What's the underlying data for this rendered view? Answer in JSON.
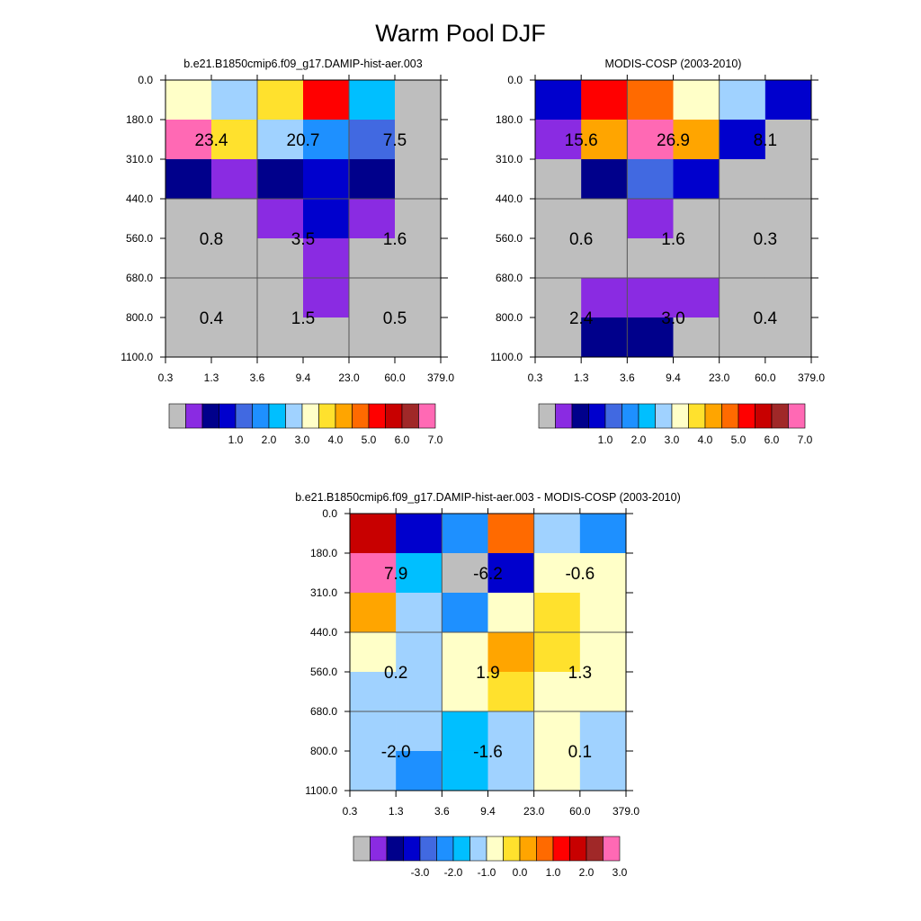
{
  "figure": {
    "title": "Warm Pool DJF"
  },
  "chart_data": [
    {
      "type": "heatmap",
      "title": "b.e21.B1850cmip6.f09_g17.DAMIP-hist-aer.003",
      "x_ticks": [
        "0.3",
        "1.3",
        "3.6",
        "9.4",
        "23.0",
        "60.0",
        "379.0"
      ],
      "y_ticks": [
        "0.0",
        "180.0",
        "310.0",
        "440.0",
        "560.0",
        "680.0",
        "800.0",
        "1100.0"
      ],
      "colorbar": {
        "colors": [
          "#bebebe",
          "#8a2be2",
          "#00008b",
          "#0000cd",
          "#4169e1",
          "#1e90ff",
          "#00bfff",
          "#a0d2ff",
          "#ffffc8",
          "#ffe12d",
          "#ffa500",
          "#ff6a00",
          "#ff0000",
          "#c80000",
          "#a02828",
          "#ff69b4"
        ],
        "tick_labels": [
          "1.0",
          "2.0",
          "3.0",
          "4.0",
          "5.0",
          "6.0",
          "7.0"
        ]
      },
      "grid": [
        [
          "#ffffc8",
          "#a0d2ff",
          "#ffe12d",
          "#ff0000",
          "#00bfff",
          "#bebebe"
        ],
        [
          "#ff69b4",
          "#ffe12d",
          "#a0d2ff",
          "#1e90ff",
          "#4169e1",
          "#bebebe"
        ],
        [
          "#00008b",
          "#8a2be2",
          "#00008b",
          "#0000cd",
          "#00008b",
          "#bebebe"
        ],
        [
          "#bebebe",
          "#bebebe",
          "#8a2be2",
          "#0000cd",
          "#8a2be2",
          "#bebebe"
        ],
        [
          "#bebebe",
          "#bebebe",
          "#bebebe",
          "#8a2be2",
          "#bebebe",
          "#bebebe"
        ],
        [
          "#bebebe",
          "#bebebe",
          "#bebebe",
          "#8a2be2",
          "#bebebe",
          "#bebebe"
        ],
        [
          "#bebebe",
          "#bebebe",
          "#bebebe",
          "#bebebe",
          "#bebebe",
          "#bebebe"
        ]
      ],
      "block_labels": [
        [
          "23.4",
          "20.7",
          "7.5"
        ],
        [
          "0.8",
          "3.5",
          "1.6"
        ],
        [
          "0.4",
          "1.5",
          "0.5"
        ]
      ]
    },
    {
      "type": "heatmap",
      "title": "MODIS-COSP (2003-2010)",
      "x_ticks": [
        "0.3",
        "1.3",
        "3.6",
        "9.4",
        "23.0",
        "60.0",
        "379.0"
      ],
      "y_ticks": [
        "0.0",
        "180.0",
        "310.0",
        "440.0",
        "560.0",
        "680.0",
        "800.0",
        "1100.0"
      ],
      "colorbar": {
        "colors": [
          "#bebebe",
          "#8a2be2",
          "#00008b",
          "#0000cd",
          "#4169e1",
          "#1e90ff",
          "#00bfff",
          "#a0d2ff",
          "#ffffc8",
          "#ffe12d",
          "#ffa500",
          "#ff6a00",
          "#ff0000",
          "#c80000",
          "#a02828",
          "#ff69b4"
        ],
        "tick_labels": [
          "1.0",
          "2.0",
          "3.0",
          "4.0",
          "5.0",
          "6.0",
          "7.0"
        ]
      },
      "grid": [
        [
          "#0000cd",
          "#ff0000",
          "#ff6a00",
          "#ffffc8",
          "#a0d2ff",
          "#0000cd"
        ],
        [
          "#8a2be2",
          "#ffa500",
          "#ff69b4",
          "#ffa500",
          "#0000cd",
          "#bebebe"
        ],
        [
          "#bebebe",
          "#00008b",
          "#4169e1",
          "#0000cd",
          "#bebebe",
          "#bebebe"
        ],
        [
          "#bebebe",
          "#bebebe",
          "#8a2be2",
          "#bebebe",
          "#bebebe",
          "#bebebe"
        ],
        [
          "#bebebe",
          "#bebebe",
          "#bebebe",
          "#bebebe",
          "#bebebe",
          "#bebebe"
        ],
        [
          "#bebebe",
          "#8a2be2",
          "#8a2be2",
          "#8a2be2",
          "#bebebe",
          "#bebebe"
        ],
        [
          "#bebebe",
          "#00008b",
          "#00008b",
          "#bebebe",
          "#bebebe",
          "#bebebe"
        ]
      ],
      "block_labels": [
        [
          "15.6",
          "26.9",
          "8.1"
        ],
        [
          "0.6",
          "1.6",
          "0.3"
        ],
        [
          "2.4",
          "3.0",
          "0.4"
        ]
      ]
    },
    {
      "type": "heatmap",
      "title": "b.e21.B1850cmip6.f09_g17.DAMIP-hist-aer.003 - MODIS-COSP (2003-2010)",
      "x_ticks": [
        "0.3",
        "1.3",
        "3.6",
        "9.4",
        "23.0",
        "60.0",
        "379.0"
      ],
      "y_ticks": [
        "0.0",
        "180.0",
        "310.0",
        "440.0",
        "560.0",
        "680.0",
        "800.0",
        "1100.0"
      ],
      "colorbar": {
        "colors": [
          "#bebebe",
          "#8a2be2",
          "#00008b",
          "#0000cd",
          "#4169e1",
          "#1e90ff",
          "#00bfff",
          "#a0d2ff",
          "#ffffc8",
          "#ffe12d",
          "#ffa500",
          "#ff6a00",
          "#ff0000",
          "#c80000",
          "#a02828",
          "#ff69b4"
        ],
        "tick_labels": [
          "-3.0",
          "-2.0",
          "-1.0",
          "0.0",
          "1.0",
          "2.0",
          "3.0"
        ]
      },
      "grid": [
        [
          "#c80000",
          "#0000cd",
          "#1e90ff",
          "#ff6a00",
          "#a0d2ff",
          "#1e90ff"
        ],
        [
          "#ff69b4",
          "#00bfff",
          "#bebebe",
          "#0000cd",
          "#ffffc8",
          "#ffffc8"
        ],
        [
          "#ffa500",
          "#a0d2ff",
          "#1e90ff",
          "#ffffc8",
          "#ffe12d",
          "#ffffc8"
        ],
        [
          "#ffffc8",
          "#a0d2ff",
          "#ffffc8",
          "#ffa500",
          "#ffe12d",
          "#ffffc8"
        ],
        [
          "#a0d2ff",
          "#a0d2ff",
          "#ffffc8",
          "#ffe12d",
          "#ffffc8",
          "#ffffc8"
        ],
        [
          "#a0d2ff",
          "#a0d2ff",
          "#00bfff",
          "#a0d2ff",
          "#ffffc8",
          "#a0d2ff"
        ],
        [
          "#a0d2ff",
          "#1e90ff",
          "#00bfff",
          "#a0d2ff",
          "#ffffc8",
          "#a0d2ff"
        ]
      ],
      "block_labels": [
        [
          "7.9",
          "-6.2",
          "-0.6"
        ],
        [
          "0.2",
          "1.9",
          "1.3"
        ],
        [
          "-2.0",
          "-1.6",
          "0.1"
        ]
      ]
    }
  ]
}
